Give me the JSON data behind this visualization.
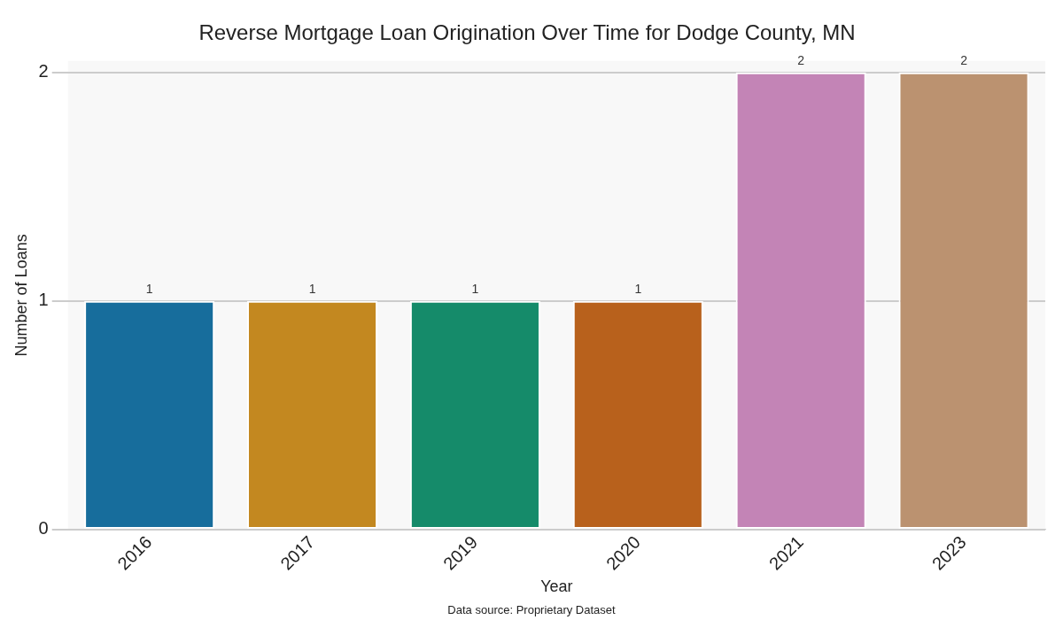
{
  "chart_data": {
    "type": "bar",
    "title": "Reverse Mortgage Loan Origination Over Time for Dodge County, MN",
    "xlabel": "Year",
    "ylabel": "Number of Loans",
    "categories": [
      "2016",
      "2017",
      "2019",
      "2020",
      "2021",
      "2023"
    ],
    "values": [
      1,
      1,
      1,
      1,
      2,
      2
    ],
    "colors": [
      "#176d9c",
      "#c38820",
      "#158b6a",
      "#b8611c",
      "#c384b6",
      "#bb9270"
    ],
    "ylim": [
      0,
      2.05
    ],
    "yticks": [
      0,
      1,
      2
    ],
    "grid": "y",
    "legend": false,
    "data_labels": true,
    "annotations": [
      "Data source: Proprietary Dataset"
    ]
  }
}
